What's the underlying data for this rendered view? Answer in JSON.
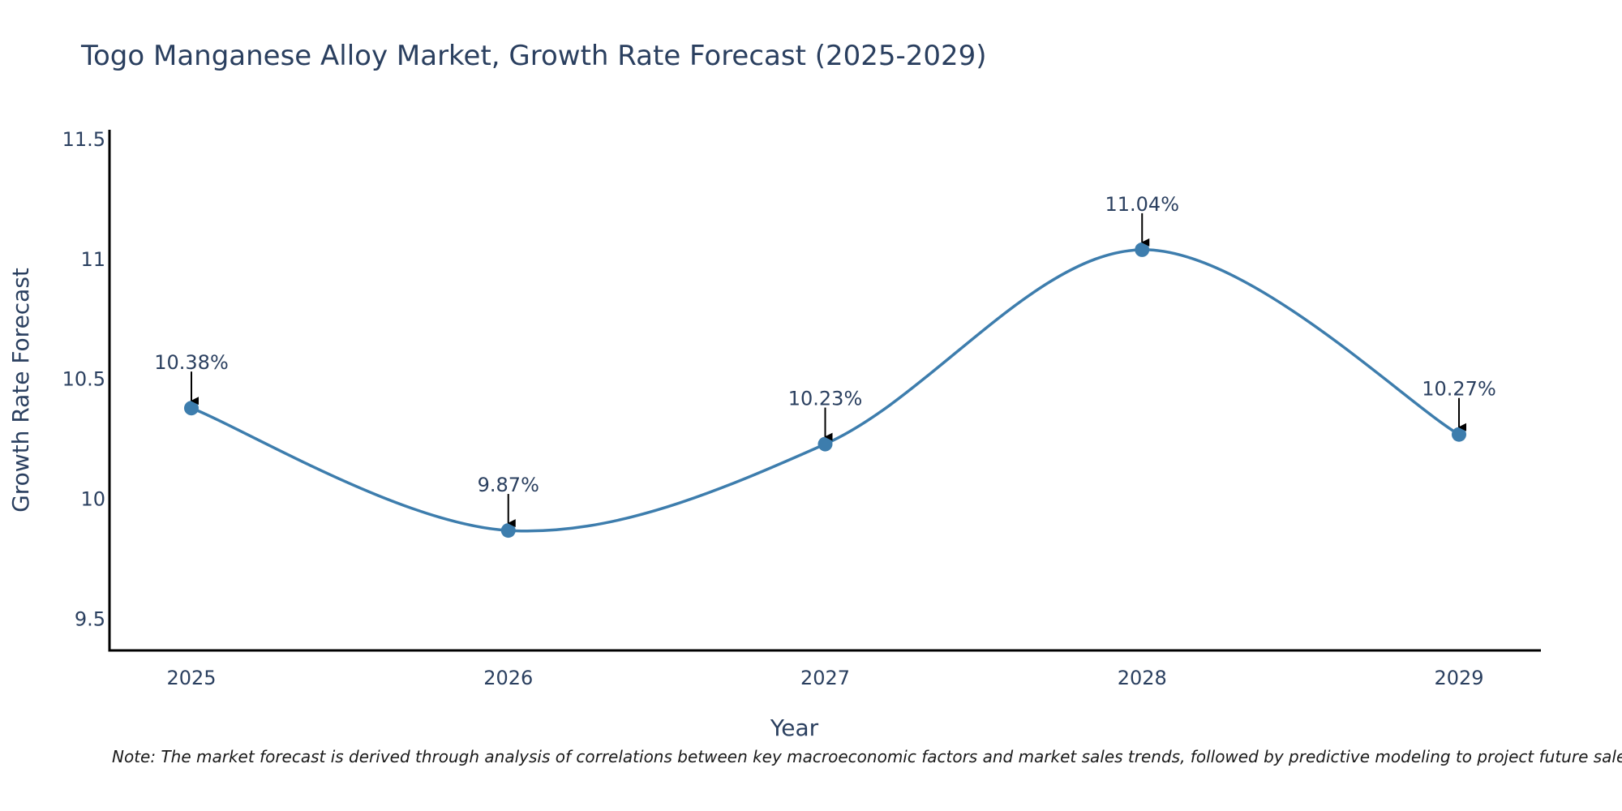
{
  "chart_data": {
    "type": "line",
    "title": "Togo Manganese Alloy Market, Growth Rate Forecast (2025-2029)",
    "xlabel": "Year",
    "ylabel": "Growth Rate Forecast",
    "categories": [
      "2025",
      "2026",
      "2027",
      "2028",
      "2029"
    ],
    "series": [
      {
        "name": "Growth Rate Forecast",
        "values": [
          10.38,
          9.87,
          10.23,
          11.04,
          10.27
        ],
        "labels": [
          "10.38%",
          "9.87%",
          "10.23%",
          "11.04%",
          "10.27%"
        ]
      }
    ],
    "ylim": [
      9.37,
      11.54
    ],
    "yticks": [
      9.5,
      10,
      10.5,
      11,
      11.5
    ],
    "ytick_labels": [
      "9.5",
      "10",
      "10.5",
      "11",
      "11.5"
    ],
    "grid": false,
    "line_shape": "spline",
    "line_color": "#3d7dad",
    "marker_color": "#3d7dad",
    "arrow_color": "#000000",
    "note": "Note: The market forecast is derived through analysis of correlations between key macroeconomic factors and market sales trends, followed by predictive modeling to project future sales"
  }
}
